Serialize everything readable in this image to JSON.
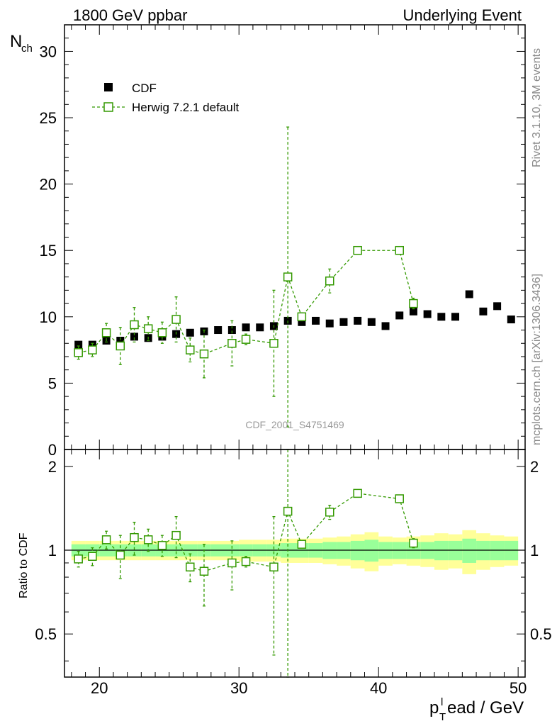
{
  "header": {
    "left": "1800 GeV ppbar",
    "right": "Underlying Event"
  },
  "side": {
    "rivet": "Rivet 3.1.10,  3M events",
    "mcplots": "mcplots.cern.ch [arXiv:1306.3436]"
  },
  "chart_data": [
    {
      "type": "scatter",
      "panel": "main",
      "ylabel": "N_ch",
      "ylim": [
        0,
        32
      ],
      "yticks": [
        0,
        5,
        10,
        15,
        20,
        25,
        30
      ],
      "xlim": [
        17.5,
        50.5
      ],
      "analysis_label": "CDF_2001_S4751469",
      "legend": {
        "placement": "top-left",
        "entries": [
          "CDF",
          "Herwig 7.2.1 default"
        ]
      },
      "series": [
        {
          "name": "CDF",
          "marker": "filled-square",
          "color": "#000000",
          "x": [
            18.5,
            19.5,
            20.5,
            21.5,
            22.5,
            23.5,
            24.5,
            25.5,
            26.5,
            27.5,
            28.5,
            29.5,
            30.5,
            31.5,
            32.5,
            33.5,
            34.5,
            35.5,
            36.5,
            37.5,
            38.5,
            39.5,
            40.5,
            41.5,
            42.5,
            43.5,
            44.5,
            45.5,
            46.5,
            47.5,
            48.5,
            49.5
          ],
          "y": [
            7.9,
            7.9,
            8.2,
            8.2,
            8.5,
            8.4,
            8.5,
            8.7,
            8.8,
            8.9,
            9.0,
            9.0,
            9.2,
            9.2,
            9.3,
            9.7,
            9.6,
            9.7,
            9.5,
            9.6,
            9.7,
            9.6,
            9.3,
            10.1,
            10.4,
            10.2,
            10.0,
            10.0,
            11.7,
            10.4,
            10.8,
            9.8
          ]
        },
        {
          "name": "Herwig 7.2.1 default",
          "marker": "open-square",
          "line": "dashed",
          "color": "#339900",
          "x": [
            18.5,
            19.5,
            20.5,
            21.5,
            22.5,
            23.5,
            24.5,
            25.5,
            26.5,
            27.5,
            29.5,
            30.5,
            32.5,
            33.5,
            34.5,
            36.5,
            38.5,
            41.5,
            42.5
          ],
          "y": [
            7.3,
            7.5,
            8.8,
            7.8,
            9.4,
            9.1,
            8.8,
            9.8,
            7.5,
            7.2,
            8.0,
            8.3,
            8.0,
            13.0,
            10.0,
            12.7,
            15.0,
            15.0,
            11.0
          ],
          "err": [
            0.5,
            0.5,
            0.7,
            1.4,
            1.3,
            0.9,
            0.8,
            1.7,
            0.9,
            1.8,
            1.7,
            0.4,
            4.0,
            11.3,
            0.3,
            0.9,
            0.2,
            0.2,
            0.4
          ]
        }
      ]
    },
    {
      "type": "scatter",
      "panel": "ratio",
      "ylabel": "Ratio to CDF",
      "ylim": [
        0.35,
        2.3
      ],
      "yticks": [
        0.5,
        1,
        2
      ],
      "ytick_labels": [
        "0.5",
        "1",
        "2"
      ],
      "xlabel": "p_T^lead / GeV",
      "xlim": [
        17.5,
        50.5
      ],
      "xticks": [
        20,
        30,
        40,
        50
      ],
      "bands": {
        "x": [
          18.5,
          19.5,
          20.5,
          21.5,
          22.5,
          23.5,
          24.5,
          25.5,
          26.5,
          27.5,
          28.5,
          29.5,
          30.5,
          31.5,
          32.5,
          33.5,
          34.5,
          35.5,
          36.5,
          37.5,
          38.5,
          39.5,
          40.5,
          41.5,
          42.5,
          43.5,
          44.5,
          45.5,
          46.5,
          47.5,
          48.5,
          49.5
        ],
        "stat": [
          0.05,
          0.05,
          0.05,
          0.05,
          0.05,
          0.05,
          0.05,
          0.05,
          0.05,
          0.05,
          0.05,
          0.05,
          0.05,
          0.05,
          0.05,
          0.06,
          0.06,
          0.06,
          0.07,
          0.07,
          0.08,
          0.09,
          0.07,
          0.07,
          0.07,
          0.07,
          0.08,
          0.08,
          0.1,
          0.08,
          0.08,
          0.08
        ],
        "total": [
          0.08,
          0.08,
          0.08,
          0.08,
          0.08,
          0.08,
          0.08,
          0.08,
          0.08,
          0.08,
          0.08,
          0.08,
          0.09,
          0.09,
          0.09,
          0.1,
          0.1,
          0.1,
          0.11,
          0.12,
          0.14,
          0.16,
          0.12,
          0.11,
          0.12,
          0.13,
          0.15,
          0.14,
          0.18,
          0.15,
          0.13,
          0.12
        ]
      },
      "series": [
        {
          "name": "Herwig 7.2.1 default / CDF",
          "color": "#339900",
          "x": [
            18.5,
            19.5,
            20.5,
            21.5,
            22.5,
            23.5,
            24.5,
            25.5,
            26.5,
            27.5,
            29.5,
            30.5,
            32.5,
            33.5,
            34.5,
            36.5,
            38.5,
            41.5,
            42.5
          ],
          "y": [
            0.93,
            0.95,
            1.09,
            0.96,
            1.11,
            1.09,
            1.04,
            1.13,
            0.87,
            0.84,
            0.9,
            0.91,
            0.87,
            1.38,
            1.05,
            1.37,
            1.6,
            1.53,
            1.06
          ],
          "err": [
            0.06,
            0.07,
            0.08,
            0.17,
            0.15,
            0.1,
            0.09,
            0.19,
            0.1,
            0.21,
            0.18,
            0.04,
            0.45,
            1.2,
            0.03,
            0.08,
            0.02,
            0.02,
            0.04
          ]
        }
      ]
    }
  ]
}
